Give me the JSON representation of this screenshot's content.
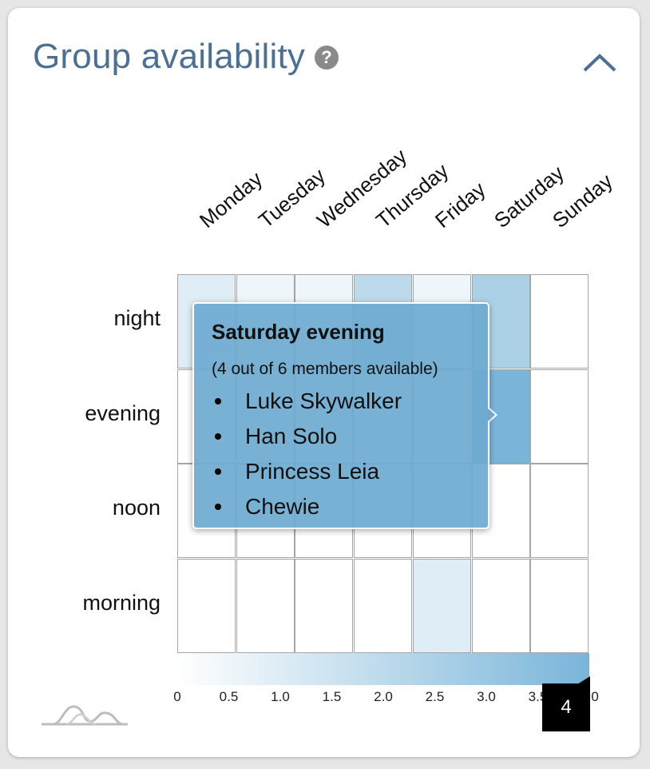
{
  "header": {
    "title": "Group availability",
    "help_icon": "help-icon",
    "help_glyph": "?",
    "collapse_icon": "chevron-up-icon"
  },
  "chart_data": {
    "type": "heatmap",
    "days": [
      "Monday",
      "Tuesday",
      "Wednesday",
      "Thursday",
      "Friday",
      "Saturday",
      "Sunday"
    ],
    "timeslots": [
      "night",
      "evening",
      "noon",
      "morning"
    ],
    "values": [
      [
        1,
        0.5,
        0.5,
        2,
        0.5,
        2.5,
        0
      ],
      [
        0,
        0,
        0,
        0,
        0,
        4,
        0
      ],
      [
        0,
        0,
        0,
        0,
        0,
        0,
        0
      ],
      [
        0,
        0,
        0,
        0,
        1,
        0,
        0
      ]
    ],
    "scale": {
      "min": 0,
      "max": 4,
      "ticks": [
        "0",
        "0.5",
        "1.0",
        "1.5",
        "2.0",
        "2.5",
        "3.0",
        "3.5",
        "4.0"
      ],
      "color_low": "#ffffff",
      "color_high": "#7ab5d9",
      "marker_value": "4"
    }
  },
  "tooltip": {
    "title": "Saturday evening",
    "subtitle": "(4 out of 6 members available)",
    "members": [
      "Luke Skywalker",
      "Han Solo",
      "Princess Leia",
      "Chewie"
    ]
  },
  "footer": {
    "logo_icon": "availability-wave-logo-icon"
  },
  "colors": {
    "title": "#4c6f92",
    "accent": "#7ab5d9",
    "grid_line": "#a5a5a5"
  }
}
